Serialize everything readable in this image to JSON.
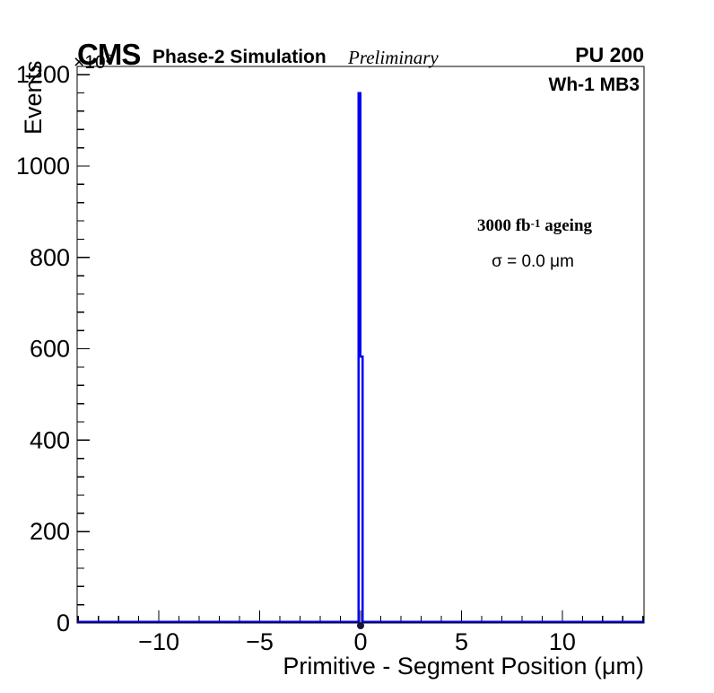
{
  "header": {
    "experiment": "CMS",
    "label": "Phase-2 Simulation",
    "sublabel": "Preliminary",
    "right_label": "PU 200"
  },
  "plot": {
    "chamber_label": "Wh-1 MB3",
    "annotation_ageing_pre": "3000 fb",
    "annotation_ageing_sup": "-1",
    "annotation_ageing_post": " ageing",
    "annotation_sigma": "σ = 0.0 μm"
  },
  "axes": {
    "x": {
      "title": "Primitive - Segment Position (μm)",
      "ticks": [
        -10,
        -5,
        0,
        5,
        10
      ],
      "tick_labels": [
        "−10",
        "−5",
        "0",
        "5",
        "10"
      ],
      "minor_step": 1
    },
    "y": {
      "title": "Events",
      "exponent": "×10",
      "exponent_sup": "3",
      "ticks": [
        0,
        200,
        400,
        600,
        800,
        1000,
        1200
      ],
      "tick_labels": [
        "0",
        "200",
        "400",
        "600",
        "800",
        "1000",
        "1200"
      ],
      "minor_step": 40
    }
  },
  "chart_data": {
    "type": "bar",
    "title": "",
    "xlabel": "Primitive - Segment Position (μm)",
    "ylabel": "Events",
    "y_unit_exponent": 3,
    "xlim": [
      -14.05,
      14.05
    ],
    "ylim": [
      0,
      1218
    ],
    "grid": false,
    "legend": null,
    "series": [
      {
        "name": "histogram",
        "bins": [
          {
            "x_low": -0.1,
            "x_high": 0.0,
            "y": 1160
          },
          {
            "x_low": 0.0,
            "x_high": 0.1,
            "y": 583
          }
        ],
        "baseline": 0,
        "marker": {
          "x": 0,
          "y": 0
        }
      }
    ]
  },
  "colors": {
    "histogram": "#0202f2",
    "marker": "#15153a",
    "frame": "#000000",
    "background": "#ffffff"
  }
}
